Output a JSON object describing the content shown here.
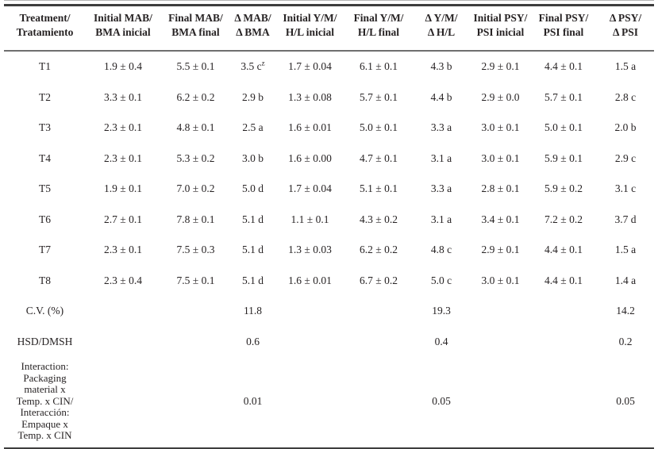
{
  "table": {
    "columns": [
      {
        "line1": "Treatment/",
        "line2": "Tratamiento"
      },
      {
        "line1": "Initial MAB/",
        "line2": "BMA inicial"
      },
      {
        "line1": "Final MAB/",
        "line2": "BMA final"
      },
      {
        "line1": "Δ MAB/",
        "line2": "Δ BMA"
      },
      {
        "line1": "Initial Y/M/",
        "line2": "H/L inicial"
      },
      {
        "line1": "Final Y/M/",
        "line2": "H/L final"
      },
      {
        "line1": "Δ Y/M/",
        "line2": "Δ H/L"
      },
      {
        "line1": "Initial PSY/",
        "line2": "PSI inicial"
      },
      {
        "line1": "Final PSY/",
        "line2": "PSI final"
      },
      {
        "line1": "Δ PSY/",
        "line2": "Δ PSI"
      }
    ],
    "rows": [
      {
        "label": "T1",
        "cells": [
          "1.9 ± 0.4",
          "5.5 ± 0.1",
          {
            "text": "3.5 c",
            "sup": "z"
          },
          "1.7 ± 0.04",
          "6.1 ± 0.1",
          "4.3 b",
          "2.9 ± 0.1",
          "4.4 ± 0.1",
          "1.5 a"
        ]
      },
      {
        "label": "T2",
        "cells": [
          "3.3 ± 0.1",
          "6.2 ± 0.2",
          "2.9 b",
          "1.3 ± 0.08",
          "5.7 ± 0.1",
          "4.4 b",
          "2.9 ± 0.0",
          "5.7 ± 0.1",
          "2.8 c"
        ]
      },
      {
        "label": "T3",
        "cells": [
          "2.3 ± 0.1",
          "4.8 ± 0.1",
          "2.5 a",
          "1.6 ± 0.01",
          "5.0 ± 0.1",
          "3.3 a",
          "3.0 ± 0.1",
          "5.0 ± 0.1",
          "2.0 b"
        ]
      },
      {
        "label": "T4",
        "cells": [
          "2.3 ± 0.1",
          "5.3 ± 0.2",
          "3.0 b",
          "1.6 ± 0.00",
          "4.7 ± 0.1",
          "3.1 a",
          "3.0 ± 0.1",
          "5.9 ± 0.1",
          "2.9 c"
        ]
      },
      {
        "label": "T5",
        "cells": [
          "1.9 ± 0.1",
          "7.0 ± 0.2",
          "5.0 d",
          "1.7 ± 0.04",
          "5.1 ± 0.1",
          "3.3 a",
          "2.8 ± 0.1",
          "5.9 ± 0.2",
          "3.1 c"
        ]
      },
      {
        "label": "T6",
        "cells": [
          "2.7 ± 0.1",
          "7.8 ± 0.1",
          "5.1 d",
          "1.1 ± 0.1",
          "4.3 ± 0.2",
          "3.1 a",
          "3.4 ± 0.1",
          "7.2 ± 0.2",
          "3.7 d"
        ]
      },
      {
        "label": "T7",
        "cells": [
          "2.3 ± 0.1",
          "7.5 ± 0.3",
          "5.1 d",
          "1.3 ± 0.03",
          "6.2 ± 0.2",
          "4.8 c",
          "2.9 ± 0.1",
          "4.4 ± 0.1",
          "1.5 a"
        ]
      },
      {
        "label": "T8",
        "cells": [
          "2.3 ± 0.4",
          "7.5 ± 0.1",
          "5.1 d",
          "1.6 ± 0.01",
          "6.7 ± 0.2",
          "5.0 c",
          "3.0 ± 0.1",
          "4.4 ± 0.1",
          "1.4 a"
        ]
      },
      {
        "label": "C.V. (%)",
        "cells": [
          "",
          "",
          "11.8",
          "",
          "",
          "19.3",
          "",
          "",
          "14.2"
        ]
      },
      {
        "label": "HSD/DMSH",
        "cells": [
          "",
          "",
          "0.6",
          "",
          "",
          "0.4",
          "",
          "",
          "0.2"
        ]
      },
      {
        "label": "Interaction:\nPackaging\nmaterial x\nTemp. x CIN/\nInteracción:\nEmpaque x\nTemp. x CIN",
        "cells": [
          "",
          "",
          "0.01",
          "",
          "",
          "0.05",
          "",
          "",
          "0.05"
        ]
      }
    ]
  }
}
